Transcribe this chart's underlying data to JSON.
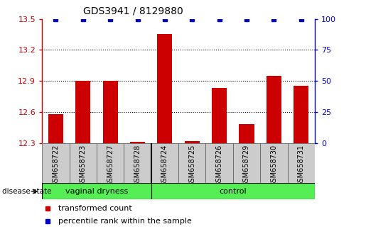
{
  "title": "GDS3941 / 8129880",
  "samples": [
    "GSM658722",
    "GSM658723",
    "GSM658727",
    "GSM658728",
    "GSM658724",
    "GSM658725",
    "GSM658726",
    "GSM658729",
    "GSM658730",
    "GSM658731"
  ],
  "bar_values": [
    12.58,
    12.9,
    12.9,
    12.31,
    13.35,
    12.32,
    12.83,
    12.48,
    12.95,
    12.85
  ],
  "percentile_values": [
    100,
    100,
    100,
    100,
    100,
    100,
    100,
    100,
    100,
    100
  ],
  "bar_base": 12.3,
  "ylim_left": [
    12.3,
    13.5
  ],
  "ylim_right": [
    0,
    100
  ],
  "yticks_left": [
    12.3,
    12.6,
    12.9,
    13.2,
    13.5
  ],
  "yticks_right": [
    0,
    25,
    50,
    75,
    100
  ],
  "bar_color": "#cc0000",
  "percentile_color": "#0000cc",
  "grid_color": "#000000",
  "group1_label": "vaginal dryness",
  "group2_label": "control",
  "group1_count": 4,
  "group2_count": 6,
  "group_color": "#55ee55",
  "group_edge_color": "#000000",
  "disease_state_label": "disease state",
  "legend_bar_label": "transformed count",
  "legend_pct_label": "percentile rank within the sample",
  "bar_width": 0.55,
  "sample_box_color": "#cccccc",
  "percentile_marker": "s",
  "percentile_size": 5,
  "title_fontsize": 10,
  "tick_fontsize": 8,
  "sample_fontsize": 7,
  "group_fontsize": 8,
  "legend_fontsize": 8
}
